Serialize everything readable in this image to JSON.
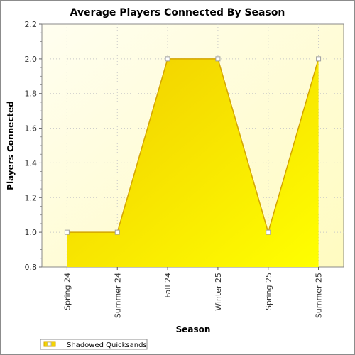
{
  "chart_data": {
    "type": "area",
    "title": "Average Players Connected By Season",
    "xlabel": "Season",
    "ylabel": "Players Connected",
    "categories": [
      "Spring 24",
      "Summer 24",
      "Fall 24",
      "Winter 25",
      "Spring 25",
      "Summer 25"
    ],
    "series": [
      {
        "name": "Shadowed Quicksands",
        "values": [
          1.0,
          1.0,
          2.0,
          2.0,
          1.0,
          2.0
        ]
      }
    ],
    "ylim": [
      0.8,
      2.2
    ],
    "yticks": [
      "0.8",
      "1.0",
      "1.2",
      "1.4",
      "1.6",
      "1.8",
      "2.0",
      "2.2"
    ],
    "grid": true,
    "legend": "bottom-left",
    "colors": {
      "fill_dark": "#f2d200",
      "fill_light": "#ffff00",
      "line": "#d4a500",
      "background_top": "#fffde6",
      "background_bottom": "#fffbb8",
      "grid": "#cccccc"
    }
  }
}
